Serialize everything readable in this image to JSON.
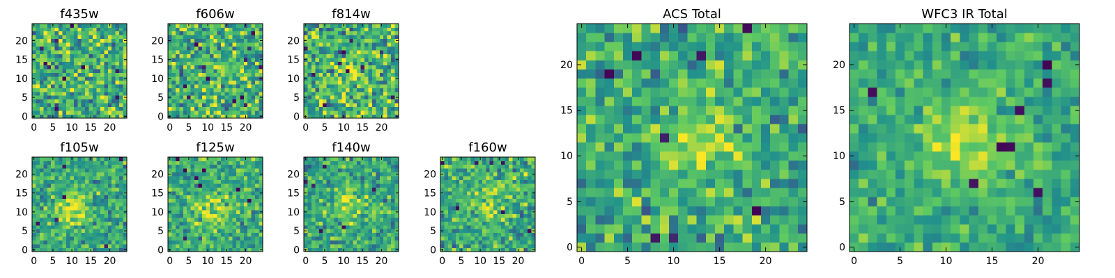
{
  "figure": {
    "colormap": [
      "#440154",
      "#3b528b",
      "#21918c",
      "#5ec962",
      "#fde725"
    ]
  },
  "chart_data": [
    {
      "type": "heatmap",
      "title": "f435w",
      "grid_size": 25,
      "xticks": [
        "0",
        "5",
        "10",
        "15",
        "20"
      ],
      "yticks": [
        "0",
        "5",
        "10",
        "15",
        "20"
      ],
      "xlim": [
        -0.5,
        24.5
      ],
      "ylim": [
        -0.5,
        24.5
      ],
      "mean": 0.65,
      "noise": 0.55,
      "peak": 0.0,
      "peak_center": [
        12,
        12
      ],
      "peak_width": 3.0,
      "seed": 101
    },
    {
      "type": "heatmap",
      "title": "f606w",
      "grid_size": 25,
      "xticks": [
        "0",
        "5",
        "10",
        "15",
        "20"
      ],
      "yticks": [
        "0",
        "5",
        "10",
        "15",
        "20"
      ],
      "xlim": [
        -0.5,
        24.5
      ],
      "ylim": [
        -0.5,
        24.5
      ],
      "mean": 0.65,
      "noise": 0.55,
      "peak": 0.1,
      "peak_center": [
        12,
        12
      ],
      "peak_width": 3.0,
      "seed": 202
    },
    {
      "type": "heatmap",
      "title": "f814w",
      "grid_size": 25,
      "xticks": [
        "0",
        "5",
        "10",
        "15",
        "20"
      ],
      "yticks": [
        "0",
        "5",
        "10",
        "15",
        "20"
      ],
      "xlim": [
        -0.5,
        24.5
      ],
      "ylim": [
        -0.5,
        24.5
      ],
      "mean": 0.65,
      "noise": 0.55,
      "peak": 0.2,
      "peak_center": [
        12,
        12
      ],
      "peak_width": 3.0,
      "seed": 303
    },
    {
      "type": "heatmap",
      "title": "f105w",
      "grid_size": 25,
      "xticks": [
        "0",
        "5",
        "10",
        "15",
        "20"
      ],
      "yticks": [
        "0",
        "5",
        "10",
        "15",
        "20"
      ],
      "xlim": [
        -0.5,
        24.5
      ],
      "ylim": [
        -0.5,
        24.5
      ],
      "mean": 0.58,
      "noise": 0.38,
      "peak": 0.35,
      "peak_center": [
        10,
        11
      ],
      "peak_width": 3.5,
      "seed": 404
    },
    {
      "type": "heatmap",
      "title": "f125w",
      "grid_size": 25,
      "xticks": [
        "0",
        "5",
        "10",
        "15",
        "20"
      ],
      "yticks": [
        "0",
        "5",
        "10",
        "15",
        "20"
      ],
      "xlim": [
        -0.5,
        24.5
      ],
      "ylim": [
        -0.5,
        24.5
      ],
      "mean": 0.6,
      "noise": 0.4,
      "peak": 0.25,
      "peak_center": [
        12,
        11
      ],
      "peak_width": 3.5,
      "seed": 505
    },
    {
      "type": "heatmap",
      "title": "f140w",
      "grid_size": 25,
      "xticks": [
        "0",
        "5",
        "10",
        "15",
        "20"
      ],
      "yticks": [
        "0",
        "5",
        "10",
        "15",
        "20"
      ],
      "xlim": [
        -0.5,
        24.5
      ],
      "ylim": [
        -0.5,
        24.5
      ],
      "mean": 0.6,
      "noise": 0.4,
      "peak": 0.25,
      "peak_center": [
        12,
        12
      ],
      "peak_width": 3.5,
      "seed": 606
    },
    {
      "type": "heatmap",
      "title": "f160w",
      "grid_size": 25,
      "xticks": [
        "0",
        "5",
        "10",
        "15",
        "20"
      ],
      "yticks": [
        "0",
        "5",
        "10",
        "15",
        "20"
      ],
      "xlim": [
        -0.5,
        24.5
      ],
      "ylim": [
        -0.5,
        24.5
      ],
      "mean": 0.62,
      "noise": 0.42,
      "peak": 0.2,
      "peak_center": [
        12,
        12
      ],
      "peak_width": 3.5,
      "seed": 707
    },
    {
      "type": "heatmap",
      "title": "ACS Total",
      "grid_size": 25,
      "xticks": [
        "0",
        "5",
        "10",
        "15",
        "20"
      ],
      "yticks": [
        "0",
        "5",
        "10",
        "15",
        "20"
      ],
      "xlim": [
        -0.5,
        24.5
      ],
      "ylim": [
        -0.5,
        24.5
      ],
      "mean": 0.62,
      "noise": 0.4,
      "peak": 0.25,
      "peak_center": [
        12,
        12
      ],
      "peak_width": 3.0,
      "seed": 808
    },
    {
      "type": "heatmap",
      "title": "WFC3 IR Total",
      "grid_size": 25,
      "xticks": [
        "0",
        "5",
        "10",
        "15",
        "20"
      ],
      "yticks": [
        "0",
        "5",
        "10",
        "15",
        "20"
      ],
      "xlim": [
        -0.5,
        24.5
      ],
      "ylim": [
        -0.5,
        24.5
      ],
      "mean": 0.6,
      "noise": 0.3,
      "peak": 0.3,
      "peak_center": [
        12,
        12
      ],
      "peak_width": 3.5,
      "seed": 909
    }
  ]
}
